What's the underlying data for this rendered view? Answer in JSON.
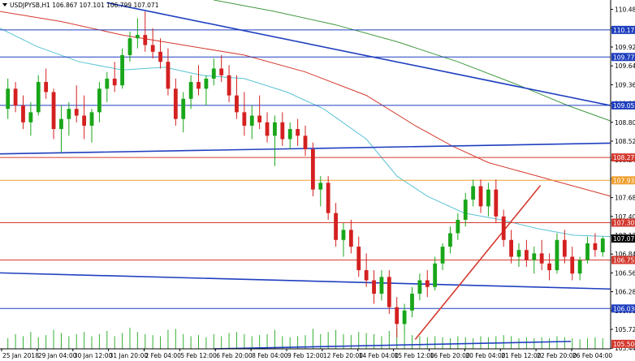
{
  "header": {
    "label": "USDJPYSB,H1  106.867 107.101 106.799 107.071"
  },
  "chart_data": {
    "type": "candlestick",
    "symbol": "USDJPYSB",
    "timeframe": "H1",
    "ohlc_header": {
      "open": 106.867,
      "high": 107.101,
      "low": 106.799,
      "close": 107.071
    },
    "y_axis": {
      "ticks": [
        110.48,
        110.2,
        109.92,
        109.64,
        109.36,
        109.08,
        108.8,
        108.52,
        108.24,
        107.96,
        107.68,
        107.4,
        107.12,
        106.84,
        106.56,
        106.28,
        106.0,
        105.72,
        105.44
      ],
      "range": [
        105.43,
        110.62
      ]
    },
    "x_axis": {
      "labels": [
        "25 Jan 2018",
        "29 Jan 04:00",
        "30 Jan 12:00",
        "31 Jan 20:00",
        "2 Feb 04:00",
        "5 Feb 12:00",
        "6 Feb 20:00",
        "8 Feb 04:00",
        "9 Feb 12:00",
        "12 Feb 20:00",
        "14 Feb 04:00",
        "15 Feb 12:00",
        "16 Feb 20:00",
        "20 Feb 04:00",
        "21 Feb 12:00",
        "22 Feb 20:00",
        "26 Feb 04:00"
      ]
    },
    "price_tags": [
      {
        "value": "110.175",
        "color": "#1f3fbf"
      },
      {
        "value": "109.772",
        "color": "#1f3fbf"
      },
      {
        "value": "109.052",
        "color": "#1f3fbf"
      },
      {
        "value": "108.277",
        "color": "#d43a2f"
      },
      {
        "value": "107.937",
        "color": "#f0a030"
      },
      {
        "value": "107.307",
        "color": "#d43a2f"
      },
      {
        "value": "107.071",
        "color": "#000000"
      },
      {
        "value": "106.752",
        "color": "#d43a2f"
      },
      {
        "value": "106.030",
        "color": "#1f3fbf"
      },
      {
        "value": "105.504",
        "color": "#d43a2f"
      }
    ],
    "horizontal_levels": [
      {
        "value": 110.175,
        "color": "#1f3fbf"
      },
      {
        "value": 109.772,
        "color": "#1f3fbf"
      },
      {
        "value": 109.052,
        "color": "#1f3fbf"
      },
      {
        "value": 108.277,
        "color": "#d43a2f"
      },
      {
        "value": 107.937,
        "color": "#f0a030"
      },
      {
        "value": 107.307,
        "color": "#d43a2f"
      },
      {
        "value": 106.752,
        "color": "#d43a2f"
      },
      {
        "value": 106.03,
        "color": "#1f3fbf"
      }
    ],
    "trendlines": [
      {
        "color": "#1f3fbf",
        "from": [
          0.175,
          110.58
        ],
        "to": [
          1.0,
          109.05
        ]
      },
      {
        "color": "#1f3fbf",
        "from": [
          0.0,
          108.33
        ],
        "to": [
          1.0,
          108.49
        ]
      },
      {
        "color": "#1f3fbf",
        "from": [
          0.0,
          106.56
        ],
        "to": [
          1.0,
          106.32
        ]
      },
      {
        "color": "#1f3fbf",
        "from": [
          0.35,
          105.43
        ],
        "to": [
          0.935,
          105.54
        ]
      },
      {
        "color": "#d43a2f",
        "from": [
          0.68,
          105.57
        ],
        "to": [
          0.885,
          107.86
        ]
      }
    ],
    "moving_averages": [
      {
        "color": "#59c3d6",
        "points": [
          [
            0.0,
            110.2
          ],
          [
            0.06,
            109.93
          ],
          [
            0.13,
            109.7
          ],
          [
            0.2,
            109.58
          ],
          [
            0.27,
            109.62
          ],
          [
            0.33,
            109.5
          ],
          [
            0.4,
            109.45
          ],
          [
            0.47,
            109.25
          ],
          [
            0.53,
            109.0
          ],
          [
            0.6,
            108.55
          ],
          [
            0.65,
            108.0
          ],
          [
            0.7,
            107.7
          ],
          [
            0.76,
            107.45
          ],
          [
            0.82,
            107.35
          ],
          [
            0.88,
            107.22
          ],
          [
            0.94,
            107.12
          ],
          [
            1.0,
            107.1
          ]
        ]
      },
      {
        "color": "#d43a2f",
        "points": [
          [
            0.0,
            110.45
          ],
          [
            0.1,
            110.3
          ],
          [
            0.2,
            110.1
          ],
          [
            0.3,
            109.95
          ],
          [
            0.4,
            109.8
          ],
          [
            0.5,
            109.55
          ],
          [
            0.6,
            109.2
          ],
          [
            0.68,
            108.75
          ],
          [
            0.74,
            108.45
          ],
          [
            0.8,
            108.2
          ],
          [
            0.86,
            108.05
          ],
          [
            0.92,
            107.9
          ],
          [
            1.0,
            107.7
          ]
        ]
      },
      {
        "color": "#3f9a3f",
        "points": [
          [
            0.35,
            110.62
          ],
          [
            0.45,
            110.45
          ],
          [
            0.55,
            110.25
          ],
          [
            0.65,
            110.0
          ],
          [
            0.75,
            109.7
          ],
          [
            0.85,
            109.35
          ],
          [
            0.93,
            109.05
          ],
          [
            1.0,
            108.82
          ]
        ]
      }
    ],
    "candles": [
      [
        109.0,
        109.45,
        108.85,
        109.3
      ],
      [
        109.3,
        109.4,
        108.95,
        109.05
      ],
      [
        109.05,
        109.2,
        108.7,
        108.8
      ],
      [
        108.8,
        109.1,
        108.6,
        108.95
      ],
      [
        108.95,
        109.5,
        108.9,
        109.4
      ],
      [
        109.4,
        109.6,
        109.15,
        109.25
      ],
      [
        109.25,
        109.3,
        108.55,
        108.7
      ],
      [
        108.7,
        109.05,
        108.35,
        108.85
      ],
      [
        108.85,
        109.1,
        108.6,
        109.0
      ],
      [
        109.0,
        109.35,
        108.8,
        108.9
      ],
      [
        108.9,
        109.2,
        108.55,
        108.75
      ],
      [
        108.75,
        109.0,
        108.5,
        108.95
      ],
      [
        108.95,
        109.4,
        108.8,
        109.3
      ],
      [
        109.3,
        109.55,
        109.1,
        109.45
      ],
      [
        109.45,
        109.7,
        109.25,
        109.35
      ],
      [
        109.35,
        109.9,
        109.3,
        109.8
      ],
      [
        109.8,
        110.15,
        109.7,
        110.05
      ],
      [
        110.05,
        110.35,
        109.9,
        110.1
      ],
      [
        110.1,
        110.45,
        109.85,
        109.95
      ],
      [
        109.95,
        110.2,
        109.75,
        109.85
      ],
      [
        109.85,
        110.05,
        109.6,
        109.7
      ],
      [
        109.7,
        109.9,
        109.2,
        109.3
      ],
      [
        109.3,
        109.45,
        108.75,
        108.85
      ],
      [
        108.85,
        109.25,
        108.65,
        109.15
      ],
      [
        109.15,
        109.5,
        109.0,
        109.4
      ],
      [
        109.4,
        109.65,
        109.2,
        109.3
      ],
      [
        109.3,
        109.5,
        109.05,
        109.45
      ],
      [
        109.45,
        109.75,
        109.35,
        109.6
      ],
      [
        109.6,
        109.8,
        109.4,
        109.5
      ],
      [
        109.5,
        109.65,
        109.1,
        109.2
      ],
      [
        109.2,
        109.5,
        108.85,
        108.95
      ],
      [
        108.95,
        109.25,
        108.6,
        108.75
      ],
      [
        108.75,
        109.05,
        108.55,
        108.9
      ],
      [
        108.9,
        109.2,
        108.7,
        108.8
      ],
      [
        108.8,
        108.95,
        108.5,
        108.6
      ],
      [
        108.6,
        108.9,
        108.15,
        108.8
      ],
      [
        108.8,
        108.95,
        108.45,
        108.55
      ],
      [
        108.55,
        108.8,
        108.4,
        108.7
      ],
      [
        108.7,
        108.85,
        108.45,
        108.6
      ],
      [
        108.6,
        108.75,
        108.3,
        108.4
      ],
      [
        108.4,
        108.5,
        107.7,
        107.8
      ],
      [
        107.8,
        108.0,
        107.55,
        107.9
      ],
      [
        107.9,
        108.0,
        107.35,
        107.45
      ],
      [
        107.45,
        107.6,
        106.95,
        107.05
      ],
      [
        107.05,
        107.3,
        106.8,
        107.2
      ],
      [
        107.2,
        107.35,
        106.85,
        106.95
      ],
      [
        106.95,
        107.1,
        106.5,
        106.6
      ],
      [
        106.6,
        106.85,
        106.35,
        106.45
      ],
      [
        106.45,
        106.6,
        106.1,
        106.25
      ],
      [
        106.25,
        106.6,
        106.15,
        106.5
      ],
      [
        106.5,
        106.6,
        105.95,
        106.05
      ],
      [
        106.05,
        106.2,
        105.6,
        105.8
      ],
      [
        105.8,
        106.1,
        105.65,
        106.0
      ],
      [
        106.0,
        106.35,
        105.9,
        106.25
      ],
      [
        106.25,
        106.55,
        106.15,
        106.45
      ],
      [
        106.45,
        106.6,
        106.2,
        106.35
      ],
      [
        106.35,
        106.8,
        106.3,
        106.7
      ],
      [
        106.7,
        107.0,
        106.6,
        106.95
      ],
      [
        106.95,
        107.25,
        106.85,
        107.15
      ],
      [
        107.15,
        107.45,
        107.05,
        107.35
      ],
      [
        107.35,
        107.75,
        107.25,
        107.65
      ],
      [
        107.65,
        107.95,
        107.55,
        107.85
      ],
      [
        107.85,
        107.95,
        107.45,
        107.55
      ],
      [
        107.55,
        107.9,
        107.4,
        107.8
      ],
      [
        107.8,
        107.95,
        107.3,
        107.4
      ],
      [
        107.4,
        107.5,
        106.95,
        107.05
      ],
      [
        107.05,
        107.2,
        106.7,
        106.8
      ],
      [
        106.8,
        107.0,
        106.65,
        106.9
      ],
      [
        106.9,
        107.05,
        106.65,
        106.75
      ],
      [
        106.75,
        106.95,
        106.55,
        106.85
      ],
      [
        106.85,
        107.05,
        106.6,
        106.7
      ],
      [
        106.7,
        106.85,
        106.45,
        106.6
      ],
      [
        106.6,
        107.15,
        106.55,
        107.05
      ],
      [
        107.05,
        107.2,
        106.7,
        106.8
      ],
      [
        106.8,
        106.95,
        106.45,
        106.55
      ],
      [
        106.55,
        106.8,
        106.45,
        106.75
      ],
      [
        106.75,
        107.1,
        106.7,
        107.0
      ],
      [
        107.0,
        107.15,
        106.8,
        106.9
      ],
      [
        106.867,
        107.101,
        106.799,
        107.071
      ]
    ],
    "volume_relative": [
      0.5,
      0.7,
      0.6,
      0.8,
      0.55,
      0.65,
      0.9,
      0.75,
      0.6,
      0.7,
      0.8,
      0.6,
      0.7,
      0.85,
      0.6,
      0.75,
      1.0,
      0.8,
      0.7,
      0.65,
      0.6,
      0.9,
      0.95,
      0.7,
      0.6,
      0.65,
      0.55,
      0.7,
      0.6,
      0.75,
      0.8,
      0.7,
      0.6,
      0.65,
      0.7,
      0.9,
      0.6,
      0.55,
      0.6,
      0.65,
      0.95,
      0.7,
      0.8,
      0.9,
      0.7,
      0.65,
      0.8,
      0.75,
      0.7,
      0.6,
      0.85,
      0.95,
      0.7,
      0.65,
      0.6,
      0.55,
      0.6,
      0.55,
      0.5,
      0.6,
      0.55,
      0.5,
      0.6,
      0.55,
      0.6,
      0.65,
      0.6,
      0.5,
      0.55,
      0.5,
      0.55,
      0.5,
      0.6,
      0.55,
      0.5,
      0.45,
      0.5,
      0.55,
      0.5
    ],
    "grid": false
  }
}
